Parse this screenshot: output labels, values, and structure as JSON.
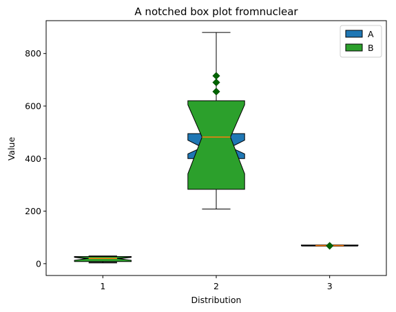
{
  "chart_data": {
    "type": "box",
    "title": "A notched box plot fromnuclear",
    "xlabel": "Distribution",
    "ylabel": "Value",
    "categories": [
      "1",
      "2",
      "3"
    ],
    "xlim": [
      0.5,
      3.5
    ],
    "ylim": [
      -45,
      925
    ],
    "yticks": [
      0,
      200,
      400,
      600,
      800
    ],
    "legend": {
      "placement": "top-right",
      "entries": [
        {
          "label": "A",
          "color": "#1f77b4"
        },
        {
          "label": "B",
          "color": "#2ca02c"
        }
      ]
    },
    "median_color": "#ff7f0e",
    "flier_color": "#006400",
    "series": [
      {
        "name": "A",
        "color": "#1f77b4",
        "boxes": [
          {
            "pos": 1,
            "q1": 10,
            "q3": 27,
            "median": 18,
            "notch_low": 12,
            "notch_high": 24,
            "whisker_low": 5,
            "whisker_high": 29,
            "fliers": []
          },
          {
            "pos": 2,
            "q1": 400,
            "q3": 495,
            "median": 443,
            "notch_low": 418,
            "notch_high": 470,
            "whisker_low": 380,
            "whisker_high": 505,
            "fliers": []
          },
          {
            "pos": 3,
            "q1": 67,
            "q3": 70,
            "median": 68,
            "notch_low": 67,
            "notch_high": 69,
            "whisker_low": 67,
            "whisker_high": 70,
            "fliers": []
          }
        ]
      },
      {
        "name": "B",
        "color": "#2ca02c",
        "boxes": [
          {
            "pos": 1,
            "q1": 8,
            "q3": 27,
            "median": 20,
            "notch_low": 13,
            "notch_high": 25,
            "whisker_low": 3,
            "whisker_high": 29,
            "fliers": []
          },
          {
            "pos": 2,
            "q1": 283,
            "q3": 620,
            "median": 482,
            "notch_low": 342,
            "notch_high": 605,
            "whisker_low": 208,
            "whisker_high": 880,
            "fliers": [
              655,
              690,
              715
            ]
          },
          {
            "pos": 3,
            "q1": 68,
            "q3": 71,
            "median": 69,
            "notch_low": 68,
            "notch_high": 70,
            "whisker_low": 68,
            "whisker_high": 71,
            "fliers": [
              68
            ]
          }
        ]
      }
    ]
  }
}
